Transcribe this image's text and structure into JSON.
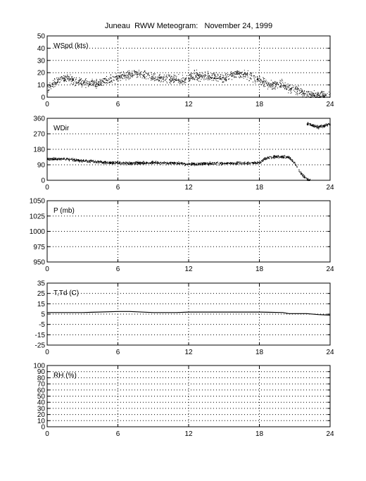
{
  "figure": {
    "title": "Juneau  RWW Meteogram:   November 24, 1999"
  },
  "chart_data": [
    {
      "type": "scatter",
      "ylabel": "WSpd (kts)",
      "xlim": [
        0,
        24
      ],
      "ylim": [
        0,
        50
      ],
      "xticks": [
        0,
        6,
        12,
        18,
        24
      ],
      "yticks": [
        0,
        10,
        20,
        30,
        40,
        50
      ],
      "grid": true,
      "trend": [
        [
          0,
          7
        ],
        [
          0.5,
          12
        ],
        [
          1.5,
          16
        ],
        [
          2.5,
          13
        ],
        [
          4,
          11
        ],
        [
          5.5,
          15
        ],
        [
          6,
          16
        ],
        [
          7.5,
          20
        ],
        [
          9,
          16
        ],
        [
          10.5,
          15
        ],
        [
          11.5,
          14
        ],
        [
          12.5,
          18
        ],
        [
          14,
          17
        ],
        [
          15,
          15
        ],
        [
          16,
          20
        ],
        [
          17,
          18
        ],
        [
          18,
          14
        ],
        [
          19,
          10
        ],
        [
          20,
          11
        ],
        [
          20.5,
          8
        ],
        [
          21.5,
          5
        ],
        [
          22,
          3
        ],
        [
          23,
          1.5
        ],
        [
          24,
          2
        ]
      ],
      "spread": 3.5,
      "points": 1400
    },
    {
      "type": "scatter",
      "ylabel": "WDir",
      "xlim": [
        0,
        24
      ],
      "ylim": [
        0,
        360
      ],
      "xticks": [
        0,
        6,
        12,
        18,
        24
      ],
      "yticks": [
        0,
        90,
        180,
        270,
        360
      ],
      "grid": true,
      "trend": [
        [
          0,
          125
        ],
        [
          1.5,
          125
        ],
        [
          3,
          115
        ],
        [
          5,
          105
        ],
        [
          7,
          100
        ],
        [
          9,
          105
        ],
        [
          11,
          100
        ],
        [
          12,
          95
        ],
        [
          14,
          100
        ],
        [
          16,
          100
        ],
        [
          18,
          105
        ],
        [
          18.5,
          130
        ],
        [
          19.5,
          140
        ],
        [
          20.5,
          135
        ],
        [
          21,
          100
        ],
        [
          21.5,
          40
        ],
        [
          22,
          10
        ],
        [
          22.3,
          0
        ]
      ],
      "trend2": [
        [
          22,
          330
        ],
        [
          22.5,
          320
        ],
        [
          23,
          310
        ],
        [
          23.5,
          320
        ],
        [
          24,
          330
        ]
      ],
      "spread": 8,
      "points": 1400
    },
    {
      "type": "line",
      "ylabel": "P (mb)",
      "xlim": [
        0,
        24
      ],
      "ylim": [
        950,
        1050
      ],
      "xticks": [
        0,
        6,
        12,
        18,
        24
      ],
      "yticks": [
        950,
        975,
        1000,
        1025,
        1050
      ],
      "grid": true,
      "series": []
    },
    {
      "type": "line",
      "ylabel": "T,Td (C)",
      "xlim": [
        0,
        24
      ],
      "ylim": [
        -25,
        35
      ],
      "xticks": [
        0,
        6,
        12,
        18,
        24
      ],
      "yticks": [
        -25,
        -15,
        -5,
        5,
        15,
        25,
        35
      ],
      "grid": true,
      "series": [
        {
          "x": [
            0,
            3,
            6,
            7,
            9,
            11,
            12,
            15,
            18,
            20,
            20.5,
            22,
            23,
            24
          ],
          "y": [
            6.5,
            6.5,
            7.5,
            7.5,
            6.5,
            6.5,
            7,
            7,
            7,
            6.5,
            5.5,
            5.5,
            4.5,
            4
          ]
        }
      ]
    },
    {
      "type": "line",
      "ylabel": "RH (%)",
      "xlim": [
        0,
        24
      ],
      "ylim": [
        0,
        100
      ],
      "xticks": [
        0,
        6,
        12,
        18,
        24
      ],
      "yticks": [
        0,
        10,
        20,
        30,
        40,
        50,
        60,
        70,
        80,
        90,
        100
      ],
      "grid": true,
      "series": []
    }
  ]
}
